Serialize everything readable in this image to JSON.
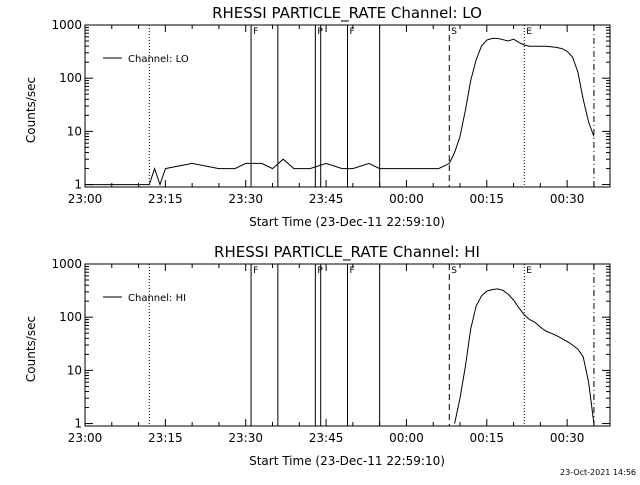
{
  "footer": {
    "timestamp": "23-Oct-2021 14:56"
  },
  "chart_data": [
    {
      "type": "line",
      "title": "RHESSI PARTICLE_RATE Channel: LO",
      "xlabel": "Start Time (23-Dec-11 22:59:10)",
      "ylabel": "Counts/sec",
      "yscale": "log",
      "ylim": [
        0.9,
        1000
      ],
      "xlim": [
        "23:00",
        "00:38"
      ],
      "x_ticks": [
        "23:00",
        "23:15",
        "23:30",
        "23:45",
        "00:00",
        "00:15",
        "00:30"
      ],
      "y_ticks": [
        "1",
        "10",
        "100",
        "1000"
      ],
      "legend": {
        "label": "Channel: LO",
        "placement": "top-left"
      },
      "grid": false,
      "markers": [
        {
          "label": "F",
          "time": "23:31",
          "style": "solid"
        },
        {
          "label": "",
          "time": "23:36",
          "style": "solid"
        },
        {
          "label": "P",
          "time": "23:43",
          "style": "solid"
        },
        {
          "label": "",
          "time": "23:44",
          "style": "solid"
        },
        {
          "label": "F",
          "time": "23:49",
          "style": "solid"
        },
        {
          "label": "",
          "time": "23:55",
          "style": "solid"
        },
        {
          "label": "S",
          "time": "00:08",
          "style": "dashed"
        },
        {
          "label": "E",
          "time": "00:22",
          "style": "dotted"
        },
        {
          "label": "",
          "time": "23:12",
          "style": "dotted"
        },
        {
          "label": "",
          "time": "00:35",
          "style": "dashdot"
        }
      ],
      "series": [
        {
          "name": "Channel: LO",
          "x": [
            "23:00",
            "23:10",
            "23:11",
            "23:12",
            "23:13",
            "23:14",
            "23:15",
            "23:20",
            "23:25",
            "23:28",
            "23:30",
            "23:33",
            "23:35",
            "23:37",
            "23:39",
            "23:42",
            "23:45",
            "23:48",
            "23:50",
            "23:53",
            "23:55",
            "23:58",
            "00:00",
            "00:03",
            "00:06",
            "00:08",
            "00:09",
            "00:10",
            "00:11",
            "00:12",
            "00:13",
            "00:14",
            "00:15",
            "00:16",
            "00:17",
            "00:18",
            "00:19",
            "00:20",
            "00:21",
            "00:22",
            "00:23",
            "00:24",
            "00:25",
            "00:26",
            "00:27",
            "00:28",
            "00:29",
            "00:30",
            "00:31",
            "00:32",
            "00:33",
            "00:34",
            "00:35"
          ],
          "values": [
            1,
            1,
            1,
            1,
            2,
            1,
            2,
            2.5,
            2,
            2,
            2.5,
            2.5,
            2,
            3,
            2,
            2,
            2.5,
            2,
            2,
            2.5,
            2,
            2,
            2,
            2,
            2,
            2.5,
            4,
            8,
            25,
            90,
            220,
            400,
            520,
            560,
            560,
            530,
            500,
            540,
            470,
            420,
            400,
            400,
            400,
            400,
            390,
            380,
            360,
            320,
            250,
            130,
            40,
            15,
            8
          ]
        }
      ]
    },
    {
      "type": "line",
      "title": "RHESSI PARTICLE_RATE Channel: HI",
      "xlabel": "Start Time (23-Dec-11 22:59:10)",
      "ylabel": "Counts/sec",
      "yscale": "log",
      "ylim": [
        0.9,
        1000
      ],
      "xlim": [
        "23:00",
        "00:38"
      ],
      "x_ticks": [
        "23:00",
        "23:15",
        "23:30",
        "23:45",
        "00:00",
        "00:15",
        "00:30"
      ],
      "y_ticks": [
        "1",
        "10",
        "100",
        "1000"
      ],
      "legend": {
        "label": "Channel: HI",
        "placement": "top-left"
      },
      "grid": false,
      "markers": [
        {
          "label": "F",
          "time": "23:31",
          "style": "solid"
        },
        {
          "label": "",
          "time": "23:36",
          "style": "solid"
        },
        {
          "label": "P",
          "time": "23:43",
          "style": "solid"
        },
        {
          "label": "",
          "time": "23:44",
          "style": "solid"
        },
        {
          "label": "F",
          "time": "23:49",
          "style": "solid"
        },
        {
          "label": "",
          "time": "23:55",
          "style": "solid"
        },
        {
          "label": "S",
          "time": "00:08",
          "style": "dashed"
        },
        {
          "label": "E",
          "time": "00:22",
          "style": "dotted"
        },
        {
          "label": "",
          "time": "23:12",
          "style": "dotted"
        },
        {
          "label": "",
          "time": "00:35",
          "style": "dashdot"
        }
      ],
      "series": [
        {
          "name": "Channel: HI",
          "x": [
            "00:09",
            "00:10",
            "00:11",
            "00:12",
            "00:13",
            "00:14",
            "00:15",
            "00:16",
            "00:17",
            "00:18",
            "00:19",
            "00:20",
            "00:21",
            "00:22",
            "00:23",
            "00:24",
            "00:25",
            "00:26",
            "00:27",
            "00:28",
            "00:29",
            "00:30",
            "00:31",
            "00:32",
            "00:33",
            "00:34",
            "00:35"
          ],
          "values": [
            1,
            3,
            12,
            60,
            160,
            250,
            310,
            330,
            340,
            320,
            270,
            210,
            150,
            110,
            90,
            80,
            65,
            55,
            50,
            45,
            40,
            35,
            30,
            25,
            18,
            6,
            1
          ]
        }
      ]
    }
  ]
}
